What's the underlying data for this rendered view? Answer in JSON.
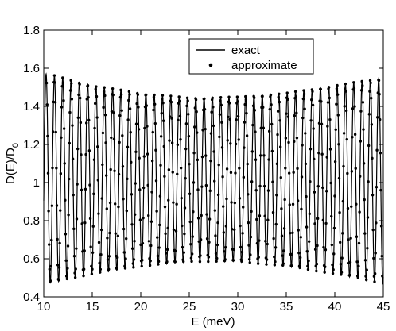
{
  "chart_data": {
    "type": "line",
    "title": "",
    "xlabel": "E (meV)",
    "ylabel_main": "D(E)/D",
    "ylabel_sub": "0",
    "xlim": [
      10,
      45
    ],
    "ylim": [
      0.4,
      1.8
    ],
    "xticks": [
      "10",
      "15",
      "20",
      "25",
      "30",
      "35",
      "40",
      "45"
    ],
    "yticks": [
      "0.4",
      "0.6",
      "0.8",
      "1",
      "1.2",
      "1.4",
      "1.6",
      "1.8"
    ],
    "grid": false,
    "legend_position": "top-right",
    "series": [
      {
        "name": "exact",
        "style": "solid-line",
        "color": "#000000"
      },
      {
        "name": "approximate",
        "style": "dots",
        "color": "#000000"
      }
    ],
    "oscillation": {
      "period_meV": 0.857,
      "first_max_E": 11.1,
      "envelope_max": [
        [
          10.5,
          1.57
        ],
        [
          15,
          1.51
        ],
        [
          20,
          1.47
        ],
        [
          25,
          1.445
        ],
        [
          30,
          1.45
        ],
        [
          35,
          1.47
        ],
        [
          40,
          1.51
        ],
        [
          45,
          1.55
        ]
      ],
      "envelope_min": [
        [
          10.5,
          0.47
        ],
        [
          15,
          0.52
        ],
        [
          20,
          0.56
        ],
        [
          25,
          0.585
        ],
        [
          30,
          0.585
        ],
        [
          35,
          0.56
        ],
        [
          40,
          0.52
        ],
        [
          45,
          0.47
        ]
      ]
    }
  }
}
